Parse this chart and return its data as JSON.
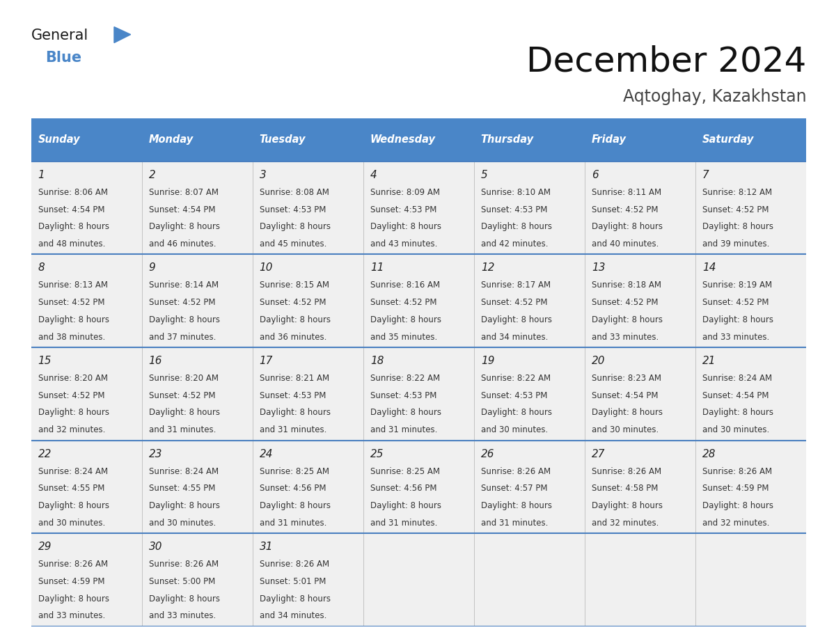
{
  "title": "December 2024",
  "subtitle": "Aqtoghay, Kazakhstan",
  "days_of_week": [
    "Sunday",
    "Monday",
    "Tuesday",
    "Wednesday",
    "Thursday",
    "Friday",
    "Saturday"
  ],
  "header_bg": "#4a86c8",
  "header_text": "#ffffff",
  "row_bg": "#f0f0f0",
  "separator_color": "#4a7fc0",
  "day_number_color": "#222222",
  "cell_text_color": "#333333",
  "title_color": "#111111",
  "subtitle_color": "#444444",
  "calendar": [
    [
      {
        "day": 1,
        "sunrise": "8:06 AM",
        "sunset": "4:54 PM",
        "daylight_h": "8 hours",
        "daylight_m": "48 minutes"
      },
      {
        "day": 2,
        "sunrise": "8:07 AM",
        "sunset": "4:54 PM",
        "daylight_h": "8 hours",
        "daylight_m": "46 minutes"
      },
      {
        "day": 3,
        "sunrise": "8:08 AM",
        "sunset": "4:53 PM",
        "daylight_h": "8 hours",
        "daylight_m": "45 minutes"
      },
      {
        "day": 4,
        "sunrise": "8:09 AM",
        "sunset": "4:53 PM",
        "daylight_h": "8 hours",
        "daylight_m": "43 minutes"
      },
      {
        "day": 5,
        "sunrise": "8:10 AM",
        "sunset": "4:53 PM",
        "daylight_h": "8 hours",
        "daylight_m": "42 minutes"
      },
      {
        "day": 6,
        "sunrise": "8:11 AM",
        "sunset": "4:52 PM",
        "daylight_h": "8 hours",
        "daylight_m": "40 minutes"
      },
      {
        "day": 7,
        "sunrise": "8:12 AM",
        "sunset": "4:52 PM",
        "daylight_h": "8 hours",
        "daylight_m": "39 minutes"
      }
    ],
    [
      {
        "day": 8,
        "sunrise": "8:13 AM",
        "sunset": "4:52 PM",
        "daylight_h": "8 hours",
        "daylight_m": "38 minutes"
      },
      {
        "day": 9,
        "sunrise": "8:14 AM",
        "sunset": "4:52 PM",
        "daylight_h": "8 hours",
        "daylight_m": "37 minutes"
      },
      {
        "day": 10,
        "sunrise": "8:15 AM",
        "sunset": "4:52 PM",
        "daylight_h": "8 hours",
        "daylight_m": "36 minutes"
      },
      {
        "day": 11,
        "sunrise": "8:16 AM",
        "sunset": "4:52 PM",
        "daylight_h": "8 hours",
        "daylight_m": "35 minutes"
      },
      {
        "day": 12,
        "sunrise": "8:17 AM",
        "sunset": "4:52 PM",
        "daylight_h": "8 hours",
        "daylight_m": "34 minutes"
      },
      {
        "day": 13,
        "sunrise": "8:18 AM",
        "sunset": "4:52 PM",
        "daylight_h": "8 hours",
        "daylight_m": "33 minutes"
      },
      {
        "day": 14,
        "sunrise": "8:19 AM",
        "sunset": "4:52 PM",
        "daylight_h": "8 hours",
        "daylight_m": "33 minutes"
      }
    ],
    [
      {
        "day": 15,
        "sunrise": "8:20 AM",
        "sunset": "4:52 PM",
        "daylight_h": "8 hours",
        "daylight_m": "32 minutes"
      },
      {
        "day": 16,
        "sunrise": "8:20 AM",
        "sunset": "4:52 PM",
        "daylight_h": "8 hours",
        "daylight_m": "31 minutes"
      },
      {
        "day": 17,
        "sunrise": "8:21 AM",
        "sunset": "4:53 PM",
        "daylight_h": "8 hours",
        "daylight_m": "31 minutes"
      },
      {
        "day": 18,
        "sunrise": "8:22 AM",
        "sunset": "4:53 PM",
        "daylight_h": "8 hours",
        "daylight_m": "31 minutes"
      },
      {
        "day": 19,
        "sunrise": "8:22 AM",
        "sunset": "4:53 PM",
        "daylight_h": "8 hours",
        "daylight_m": "30 minutes"
      },
      {
        "day": 20,
        "sunrise": "8:23 AM",
        "sunset": "4:54 PM",
        "daylight_h": "8 hours",
        "daylight_m": "30 minutes"
      },
      {
        "day": 21,
        "sunrise": "8:24 AM",
        "sunset": "4:54 PM",
        "daylight_h": "8 hours",
        "daylight_m": "30 minutes"
      }
    ],
    [
      {
        "day": 22,
        "sunrise": "8:24 AM",
        "sunset": "4:55 PM",
        "daylight_h": "8 hours",
        "daylight_m": "30 minutes"
      },
      {
        "day": 23,
        "sunrise": "8:24 AM",
        "sunset": "4:55 PM",
        "daylight_h": "8 hours",
        "daylight_m": "30 minutes"
      },
      {
        "day": 24,
        "sunrise": "8:25 AM",
        "sunset": "4:56 PM",
        "daylight_h": "8 hours",
        "daylight_m": "31 minutes"
      },
      {
        "day": 25,
        "sunrise": "8:25 AM",
        "sunset": "4:56 PM",
        "daylight_h": "8 hours",
        "daylight_m": "31 minutes"
      },
      {
        "day": 26,
        "sunrise": "8:26 AM",
        "sunset": "4:57 PM",
        "daylight_h": "8 hours",
        "daylight_m": "31 minutes"
      },
      {
        "day": 27,
        "sunrise": "8:26 AM",
        "sunset": "4:58 PM",
        "daylight_h": "8 hours",
        "daylight_m": "32 minutes"
      },
      {
        "day": 28,
        "sunrise": "8:26 AM",
        "sunset": "4:59 PM",
        "daylight_h": "8 hours",
        "daylight_m": "32 minutes"
      }
    ],
    [
      {
        "day": 29,
        "sunrise": "8:26 AM",
        "sunset": "4:59 PM",
        "daylight_h": "8 hours",
        "daylight_m": "33 minutes"
      },
      {
        "day": 30,
        "sunrise": "8:26 AM",
        "sunset": "5:00 PM",
        "daylight_h": "8 hours",
        "daylight_m": "33 minutes"
      },
      {
        "day": 31,
        "sunrise": "8:26 AM",
        "sunset": "5:01 PM",
        "daylight_h": "8 hours",
        "daylight_m": "34 minutes"
      },
      null,
      null,
      null,
      null
    ]
  ]
}
